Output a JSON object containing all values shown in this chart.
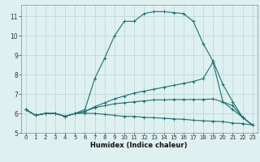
{
  "xlabel": "Humidex (Indice chaleur)",
  "bg_color": "#dff0f0",
  "grid_color": "#b8d4d4",
  "line_color": "#1a7070",
  "spine_color": "#888888",
  "xlim": [
    -0.5,
    23.5
  ],
  "ylim": [
    5.0,
    11.6
  ],
  "yticks": [
    5,
    6,
    7,
    8,
    9,
    10,
    11
  ],
  "xticks": [
    0,
    1,
    2,
    3,
    4,
    5,
    6,
    7,
    8,
    9,
    10,
    11,
    12,
    13,
    14,
    15,
    16,
    17,
    18,
    19,
    20,
    21,
    22,
    23
  ],
  "tick_fontsize": 5.0,
  "xlabel_fontsize": 6.0,
  "series": [
    {
      "x": [
        0,
        1,
        2,
        3,
        4,
        5,
        6,
        7,
        8,
        9,
        10,
        11,
        12,
        13,
        14,
        15,
        16,
        17,
        18,
        19,
        20,
        21,
        22,
        23
      ],
      "y": [
        6.2,
        5.9,
        6.0,
        6.0,
        5.85,
        6.0,
        6.2,
        7.8,
        8.85,
        10.0,
        10.75,
        10.75,
        11.15,
        11.25,
        11.25,
        11.2,
        11.15,
        10.75,
        9.6,
        8.7,
        7.5,
        6.6,
        5.8,
        5.4
      ]
    },
    {
      "x": [
        0,
        1,
        2,
        3,
        4,
        5,
        6,
        7,
        8,
        9,
        10,
        11,
        12,
        13,
        14,
        15,
        16,
        17,
        18,
        19,
        20,
        21,
        22,
        23
      ],
      "y": [
        6.2,
        5.9,
        6.0,
        6.0,
        5.85,
        6.0,
        6.1,
        6.35,
        6.55,
        6.75,
        6.9,
        7.05,
        7.15,
        7.25,
        7.35,
        7.45,
        7.55,
        7.65,
        7.8,
        8.65,
        6.6,
        6.4,
        5.8,
        5.4
      ]
    },
    {
      "x": [
        0,
        1,
        2,
        3,
        4,
        5,
        6,
        7,
        8,
        9,
        10,
        11,
        12,
        13,
        14,
        15,
        16,
        17,
        18,
        19,
        20,
        21,
        22,
        23
      ],
      "y": [
        6.2,
        5.9,
        6.0,
        6.0,
        5.85,
        6.0,
        6.1,
        6.3,
        6.4,
        6.5,
        6.55,
        6.6,
        6.65,
        6.7,
        6.7,
        6.72,
        6.72,
        6.72,
        6.72,
        6.75,
        6.6,
        6.2,
        5.8,
        5.4
      ]
    },
    {
      "x": [
        0,
        1,
        2,
        3,
        4,
        5,
        6,
        7,
        8,
        9,
        10,
        11,
        12,
        13,
        14,
        15,
        16,
        17,
        18,
        19,
        20,
        21,
        22,
        23
      ],
      "y": [
        6.2,
        5.9,
        6.0,
        6.0,
        5.85,
        6.0,
        6.0,
        6.0,
        5.95,
        5.9,
        5.85,
        5.85,
        5.8,
        5.78,
        5.75,
        5.72,
        5.7,
        5.65,
        5.62,
        5.6,
        5.58,
        5.5,
        5.48,
        5.4
      ]
    }
  ]
}
